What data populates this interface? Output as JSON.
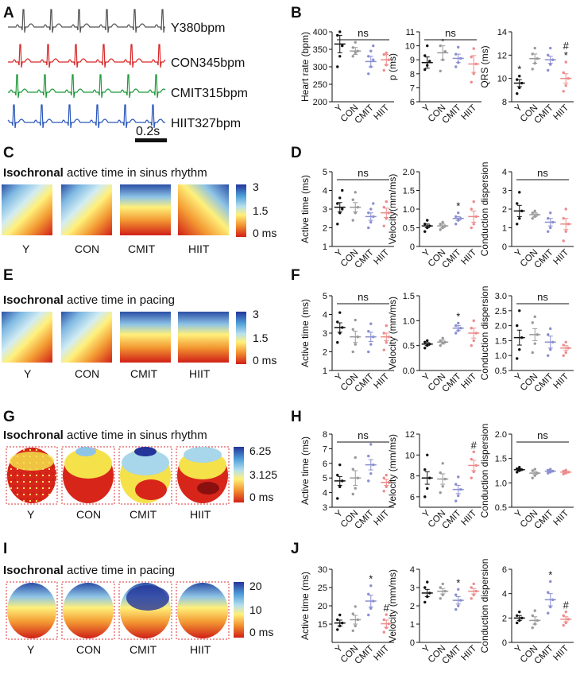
{
  "panels": {
    "A": "A",
    "B": "B",
    "C": "C",
    "D": "D",
    "E": "E",
    "F": "F",
    "G": "G",
    "H": "H",
    "I": "I",
    "J": "J"
  },
  "traces": [
    {
      "label": "Y380bpm",
      "color": "#555555"
    },
    {
      "label": "CON345bpm",
      "color": "#d62828"
    },
    {
      "label": "CMIT315bpm",
      "color": "#1f9a3a"
    },
    {
      "label": "HIIT327bpm",
      "color": "#2a57b8"
    }
  ],
  "scale_bar_label": "0.2s",
  "groups": [
    "Y",
    "CON",
    "CMIT",
    "HIIT"
  ],
  "group_colors": [
    "#111111",
    "#9a9a9a",
    "#8a8fd0",
    "#ee8a8a"
  ],
  "heatmaps": {
    "C": {
      "bold": "Isochronal",
      "rest": " active time in sinus rhythm",
      "scale": [
        "3",
        "1.5",
        "0 ms"
      ]
    },
    "E": {
      "bold": "Isochronal",
      "rest": " active time in pacing",
      "scale": [
        "3",
        "1.5",
        "0 ms"
      ]
    },
    "G": {
      "bold": "Isochronal",
      "rest": " active time in sinus rhythm",
      "scale": [
        "6.25",
        "3.125",
        "0 ms"
      ]
    },
    "I": {
      "bold": "Isochronal",
      "rest": " active time in pacing",
      "scale": [
        "20",
        "10",
        "0 ms"
      ]
    }
  },
  "chart_data": [
    {
      "id": "B1",
      "type": "scatter",
      "ylabel": "Heart rate (bpm)",
      "ylim": [
        200,
        400
      ],
      "yticks": [
        200,
        250,
        300,
        350,
        400
      ],
      "means": [
        365,
        345,
        315,
        320
      ],
      "sem": [
        25,
        10,
        15,
        15
      ],
      "points": [
        [
          300,
          330,
          360,
          390,
          400
        ],
        [
          330,
          340,
          345,
          355,
          370
        ],
        [
          280,
          300,
          320,
          330,
          345,
          360
        ],
        [
          290,
          305,
          320,
          335,
          340
        ]
      ],
      "annot": [
        {
          "g": 0,
          "t": ""
        }
      ],
      "ns": "ns"
    },
    {
      "id": "B2",
      "type": "scatter",
      "ylabel": "p (ms)",
      "ylim": [
        6,
        11
      ],
      "yticks": [
        6,
        7,
        8,
        9,
        10,
        11
      ],
      "means": [
        8.8,
        9.5,
        9.1,
        8.7
      ],
      "sem": [
        0.4,
        0.5,
        0.3,
        0.6
      ],
      "points": [
        [
          8.3,
          8.6,
          8.9,
          9.3,
          10.0
        ],
        [
          8.2,
          9.0,
          9.6,
          10.0,
          10.4
        ],
        [
          8.5,
          8.8,
          9.1,
          9.4,
          9.9
        ],
        [
          7.4,
          8.0,
          8.7,
          9.2,
          9.8
        ]
      ],
      "annot": [],
      "ns": "ns"
    },
    {
      "id": "B3",
      "type": "scatter",
      "ylabel": "QRS (ms)",
      "ylim": [
        8,
        14
      ],
      "yticks": [
        8,
        10,
        12,
        14
      ],
      "means": [
        9.6,
        11.7,
        11.6,
        10.0
      ],
      "sem": [
        0.3,
        0.4,
        0.3,
        0.4
      ],
      "points": [
        [
          8.7,
          9.2,
          9.6,
          9.9,
          10.2
        ],
        [
          10.8,
          11.3,
          11.7,
          12.1,
          12.6
        ],
        [
          10.7,
          11.2,
          11.6,
          12.0,
          12.6
        ],
        [
          8.9,
          9.4,
          10.0,
          10.5,
          11.4
        ]
      ],
      "annot": [
        {
          "g": 0,
          "t": "*"
        },
        {
          "g": 3,
          "t": "*"
        },
        {
          "g": 3,
          "t": "#"
        }
      ],
      "ns": ""
    },
    {
      "id": "D1",
      "type": "scatter",
      "ylabel": "Active time (ms)",
      "ylim": [
        1,
        5
      ],
      "yticks": [
        1,
        2,
        3,
        4,
        5
      ],
      "means": [
        3.1,
        3.1,
        2.6,
        2.8
      ],
      "sem": [
        0.25,
        0.25,
        0.2,
        0.25
      ],
      "points": [
        [
          2.2,
          2.8,
          3.0,
          3.3,
          3.6,
          4.0
        ],
        [
          2.4,
          2.8,
          3.1,
          3.5,
          3.9
        ],
        [
          2.0,
          2.3,
          2.6,
          2.8,
          3.0,
          3.3
        ],
        [
          2.1,
          2.5,
          2.8,
          3.1,
          3.4
        ]
      ],
      "annot": [],
      "ns": "ns"
    },
    {
      "id": "D2",
      "type": "scatter",
      "ylabel": "Velocity(mm/ms)",
      "ylim": [
        0,
        2
      ],
      "yticks": [
        0,
        0.5,
        1,
        1.5,
        2
      ],
      "ytickfmt": [
        "0",
        "0.5",
        "1.0",
        "1.5",
        "2.0"
      ],
      "means": [
        0.55,
        0.55,
        0.75,
        0.8
      ],
      "sem": [
        0.05,
        0.05,
        0.05,
        0.15
      ],
      "points": [
        [
          0.4,
          0.5,
          0.55,
          0.6,
          0.7
        ],
        [
          0.45,
          0.5,
          0.55,
          0.6,
          0.65
        ],
        [
          0.6,
          0.7,
          0.75,
          0.8,
          0.9
        ],
        [
          0.5,
          0.6,
          0.8,
          1.0,
          1.2
        ]
      ],
      "annot": [
        {
          "g": 2,
          "t": "*"
        }
      ],
      "ns": ""
    },
    {
      "id": "D3",
      "type": "scatter",
      "ylabel": "Conduction dispersion",
      "ylim": [
        0,
        4
      ],
      "yticks": [
        0,
        1,
        2,
        3,
        4
      ],
      "means": [
        1.9,
        1.7,
        1.3,
        1.2
      ],
      "sem": [
        0.3,
        0.1,
        0.2,
        0.3
      ],
      "points": [
        [
          1.2,
          1.5,
          1.9,
          2.3,
          2.9
        ],
        [
          1.5,
          1.6,
          1.7,
          1.8,
          1.9
        ],
        [
          0.8,
          1.0,
          1.3,
          1.5,
          1.8
        ],
        [
          0.3,
          0.8,
          1.2,
          1.5,
          2.0
        ]
      ],
      "annot": [],
      "ns": "ns"
    },
    {
      "id": "F1",
      "type": "scatter",
      "ylabel": "Active time (ms)",
      "ylim": [
        1,
        5
      ],
      "yticks": [
        1,
        2,
        3,
        4,
        5
      ],
      "means": [
        3.3,
        2.8,
        2.8,
        2.8
      ],
      "sem": [
        0.25,
        0.3,
        0.25,
        0.2
      ],
      "points": [
        [
          2.5,
          3.0,
          3.3,
          3.6,
          4.1
        ],
        [
          2.0,
          2.4,
          2.8,
          3.2,
          3.7
        ],
        [
          2.0,
          2.4,
          2.8,
          3.1,
          3.5
        ],
        [
          2.1,
          2.5,
          2.8,
          3.0,
          3.4
        ]
      ],
      "annot": [],
      "ns": "ns"
    },
    {
      "id": "F2",
      "type": "scatter",
      "ylabel": "Velocity (mm/ms)",
      "ylim": [
        0,
        1.5
      ],
      "yticks": [
        0,
        0.5,
        1,
        1.5
      ],
      "ytickfmt": [
        "0.0",
        "0.5",
        "1.0",
        "1.5"
      ],
      "means": [
        0.53,
        0.57,
        0.85,
        0.75
      ],
      "sem": [
        0.03,
        0.04,
        0.05,
        0.1
      ],
      "points": [
        [
          0.45,
          0.5,
          0.53,
          0.57,
          0.6
        ],
        [
          0.5,
          0.55,
          0.57,
          0.6,
          0.65
        ],
        [
          0.75,
          0.8,
          0.85,
          0.9,
          0.95
        ],
        [
          0.5,
          0.6,
          0.75,
          0.85,
          1.0
        ]
      ],
      "annot": [
        {
          "g": 2,
          "t": "*"
        }
      ],
      "ns": ""
    },
    {
      "id": "F3",
      "type": "scatter",
      "ylabel": "Conduction dispersion",
      "ylim": [
        0.5,
        3
      ],
      "yticks": [
        0.5,
        1,
        1.5,
        2,
        2.5,
        3
      ],
      "ytickfmt": [
        "0.5",
        "1.0",
        "1.5",
        "2.0",
        "2.5",
        "3.0"
      ],
      "means": [
        1.6,
        1.7,
        1.45,
        1.25
      ],
      "sem": [
        0.25,
        0.2,
        0.2,
        0.08
      ],
      "points": [
        [
          0.9,
          1.2,
          1.6,
          2.0,
          2.5
        ],
        [
          1.1,
          1.4,
          1.7,
          2.1,
          2.3
        ],
        [
          1.0,
          1.2,
          1.45,
          1.7,
          1.9
        ],
        [
          1.0,
          1.1,
          1.25,
          1.35,
          1.45
        ]
      ],
      "annot": [],
      "ns": "ns"
    },
    {
      "id": "H1",
      "type": "scatter",
      "ylabel": "Active time (ms)",
      "ylim": [
        3,
        8
      ],
      "yticks": [
        3,
        4,
        5,
        6,
        7,
        8
      ],
      "means": [
        4.8,
        5.0,
        5.9,
        4.7
      ],
      "sem": [
        0.3,
        0.5,
        0.35,
        0.2
      ],
      "points": [
        [
          3.6,
          4.4,
          4.8,
          5.2,
          5.9
        ],
        [
          3.9,
          4.3,
          5.0,
          5.6,
          6.4
        ],
        [
          4.8,
          5.3,
          5.9,
          6.5,
          7.3
        ],
        [
          4.1,
          4.4,
          4.7,
          5.0,
          5.2
        ]
      ],
      "annot": [],
      "ns": "ns"
    },
    {
      "id": "H2",
      "type": "scatter",
      "ylabel": "Velocity (mm/ms)",
      "ylim": [
        5,
        12
      ],
      "yticks": [
        6,
        8,
        10,
        12
      ],
      "means": [
        7.8,
        7.7,
        6.7,
        9.0
      ],
      "sem": [
        0.6,
        0.5,
        0.4,
        0.5
      ],
      "points": [
        [
          6.0,
          6.8,
          7.8,
          8.6,
          10.0
        ],
        [
          6.4,
          7.0,
          7.7,
          8.3,
          9.2
        ],
        [
          5.6,
          6.1,
          6.7,
          7.2,
          7.9
        ],
        [
          7.8,
          8.4,
          9.0,
          9.6,
          10.3
        ]
      ],
      "annot": [
        {
          "g": 3,
          "t": "#"
        }
      ],
      "ns": ""
    },
    {
      "id": "H3",
      "type": "scatter",
      "ylabel": "Conduction dispersion",
      "ylim": [
        0.5,
        2
      ],
      "yticks": [
        0.5,
        1,
        1.5,
        2
      ],
      "ytickfmt": [
        "0.5",
        "1.0",
        "1.5",
        "2.0"
      ],
      "means": [
        1.27,
        1.2,
        1.24,
        1.22
      ],
      "sem": [
        0.02,
        0.03,
        0.01,
        0.01
      ],
      "points": [
        [
          1.22,
          1.25,
          1.27,
          1.29,
          1.32
        ],
        [
          1.1,
          1.15,
          1.2,
          1.25,
          1.28
        ],
        [
          1.2,
          1.22,
          1.24,
          1.26,
          1.28
        ],
        [
          1.18,
          1.2,
          1.22,
          1.24,
          1.26
        ]
      ],
      "annot": [],
      "ns": "ns"
    },
    {
      "id": "J1",
      "type": "scatter",
      "ylabel": "Active time (ms)",
      "ylim": [
        10,
        30
      ],
      "yticks": [
        15,
        20,
        25,
        30
      ],
      "means": [
        15.3,
        16.2,
        21.3,
        15.1
      ],
      "sem": [
        0.8,
        1.2,
        1.6,
        1.0
      ],
      "points": [
        [
          13.5,
          14.5,
          15.3,
          16.2,
          17.5
        ],
        [
          13.2,
          14.5,
          16.2,
          17.8,
          19.8
        ],
        [
          17.5,
          19.3,
          21.3,
          23.2,
          25.5
        ],
        [
          12.8,
          14.0,
          15.1,
          16.2,
          17.6
        ]
      ],
      "annot": [
        {
          "g": 2,
          "t": "*"
        },
        {
          "g": 3,
          "t": "#"
        }
      ],
      "ns": ""
    },
    {
      "id": "J2",
      "type": "scatter",
      "ylabel": "Velocity (mm/ms)",
      "ylim": [
        0,
        4
      ],
      "yticks": [
        0,
        1,
        2,
        3,
        4
      ],
      "means": [
        2.7,
        2.8,
        2.3,
        2.8
      ],
      "sem": [
        0.2,
        0.15,
        0.2,
        0.15
      ],
      "points": [
        [
          2.2,
          2.5,
          2.7,
          3.0,
          3.3
        ],
        [
          2.4,
          2.6,
          2.8,
          3.0,
          3.2
        ],
        [
          1.8,
          2.0,
          2.3,
          2.6,
          2.9
        ],
        [
          2.4,
          2.6,
          2.8,
          3.0,
          3.2
        ]
      ],
      "annot": [
        {
          "g": 2,
          "t": "*"
        }
      ],
      "ns": ""
    },
    {
      "id": "J3",
      "type": "scatter",
      "ylabel": "Conduction dispersion",
      "ylim": [
        0,
        6
      ],
      "yticks": [
        0,
        2,
        4,
        6
      ],
      "means": [
        2.0,
        1.8,
        3.5,
        1.9
      ],
      "sem": [
        0.2,
        0.3,
        0.5,
        0.2
      ],
      "points": [
        [
          1.6,
          1.8,
          2.0,
          2.2,
          2.5
        ],
        [
          1.2,
          1.5,
          1.8,
          2.2,
          2.6
        ],
        [
          2.4,
          2.9,
          3.5,
          4.1,
          5.0
        ],
        [
          1.4,
          1.6,
          1.9,
          2.2,
          2.5
        ]
      ],
      "annot": [
        {
          "g": 2,
          "t": "*"
        },
        {
          "g": 3,
          "t": "#"
        }
      ],
      "ns": ""
    }
  ]
}
